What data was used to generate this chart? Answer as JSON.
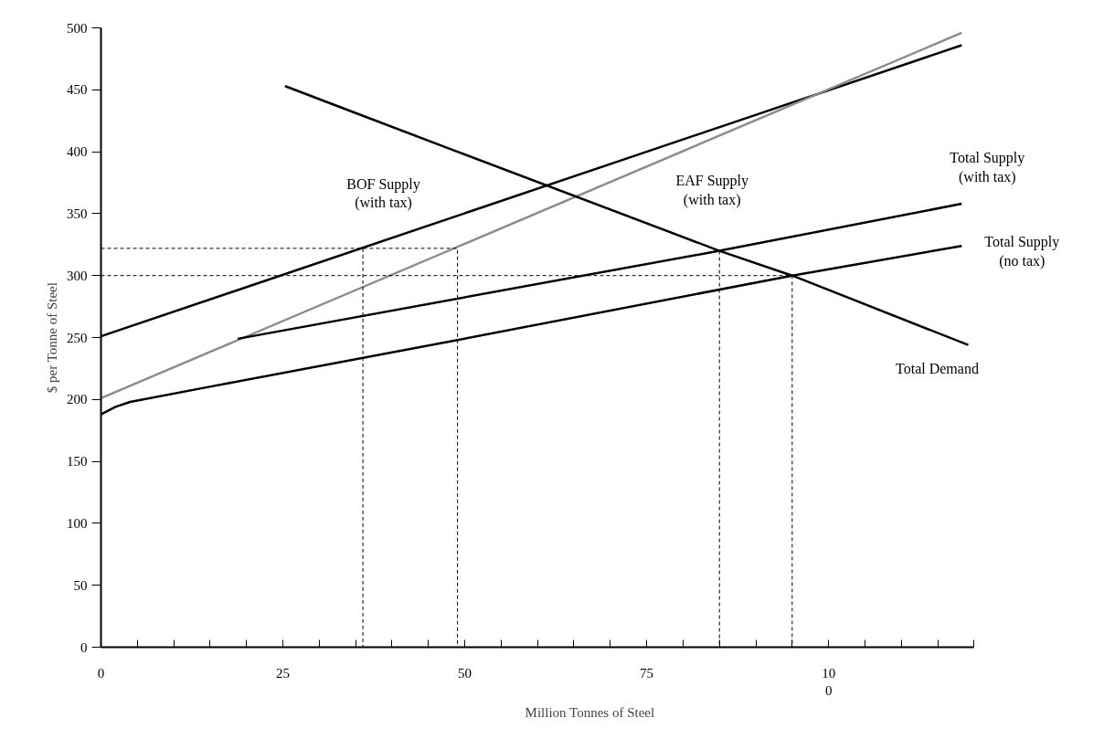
{
  "chart_data": {
    "type": "line",
    "xlabel": "Million Tonnes of Steel",
    "ylabel": "$ per Tonne of Steel",
    "xlim": [
      0,
      120
    ],
    "ylim": [
      0,
      500
    ],
    "xticks": [
      0,
      {
        "value": 5,
        "label": null
      },
      {
        "value": 10,
        "label": null
      },
      {
        "value": 15,
        "label": null
      },
      {
        "value": 20,
        "label": null
      },
      25,
      {
        "value": 30,
        "label": null
      },
      {
        "value": 35,
        "label": null
      },
      {
        "value": 40,
        "label": null
      },
      {
        "value": 45,
        "label": null
      },
      50,
      {
        "value": 55,
        "label": null
      },
      {
        "value": 60,
        "label": null
      },
      {
        "value": 65,
        "label": null
      },
      {
        "value": 70,
        "label": null
      },
      75,
      {
        "value": 80,
        "label": null
      },
      {
        "value": 85,
        "label": null
      },
      {
        "value": 90,
        "label": null
      },
      {
        "value": 95,
        "label": null
      },
      {
        "value": 100,
        "label": "10\n0"
      },
      {
        "value": 105,
        "label": null
      },
      {
        "value": 110,
        "label": null
      },
      {
        "value": 115,
        "label": null
      },
      {
        "value": 120,
        "label": null
      }
    ],
    "yticks": [
      0,
      50,
      100,
      150,
      200,
      250,
      300,
      350,
      400,
      450,
      500
    ],
    "grid": false,
    "marker": "none",
    "series": [
      {
        "name": "BOF Supply\n(with tax)",
        "color": "#000000",
        "x": [
          0,
          118.3
        ],
        "values": [
          251,
          486
        ]
      },
      {
        "name": "EAF Supply\n(with tax)",
        "color": "#8c8c8c",
        "x": [
          0,
          118.3
        ],
        "values": [
          201,
          496
        ]
      },
      {
        "name": "Total Supply\n(with tax)",
        "color": "#000000",
        "x": [
          18.8,
          85,
          118.3
        ],
        "values": [
          249,
          320,
          358
        ]
      },
      {
        "name": "Total Supply\n(no tax)",
        "color": "#000000",
        "x": [
          0,
          2,
          4,
          15.6,
          49,
          95,
          118.3
        ],
        "values": [
          188,
          194,
          198,
          211,
          248,
          300,
          324
        ]
      },
      {
        "name": "Total Demand",
        "color": "#000000",
        "x": [
          25.3,
          36,
          49,
          85,
          95,
          119.2
        ],
        "values": [
          453,
          429,
          400,
          320,
          300,
          244
        ]
      },
      {
        "color": "#000000",
        "line_style": "dashed",
        "x": [
          0,
          49,
          49
        ],
        "values": [
          322,
          322,
          0
        ]
      },
      {
        "color": "#000000",
        "line_style": "dashed",
        "x": [
          36,
          36
        ],
        "values": [
          322,
          0
        ]
      },
      {
        "color": "#000000",
        "line_style": "dashed",
        "x": [
          0,
          95,
          95
        ],
        "values": [
          300,
          300,
          0
        ]
      },
      {
        "color": "#000000",
        "line_style": "dashed",
        "x": [
          85,
          85
        ],
        "values": [
          320,
          0
        ]
      }
    ]
  }
}
